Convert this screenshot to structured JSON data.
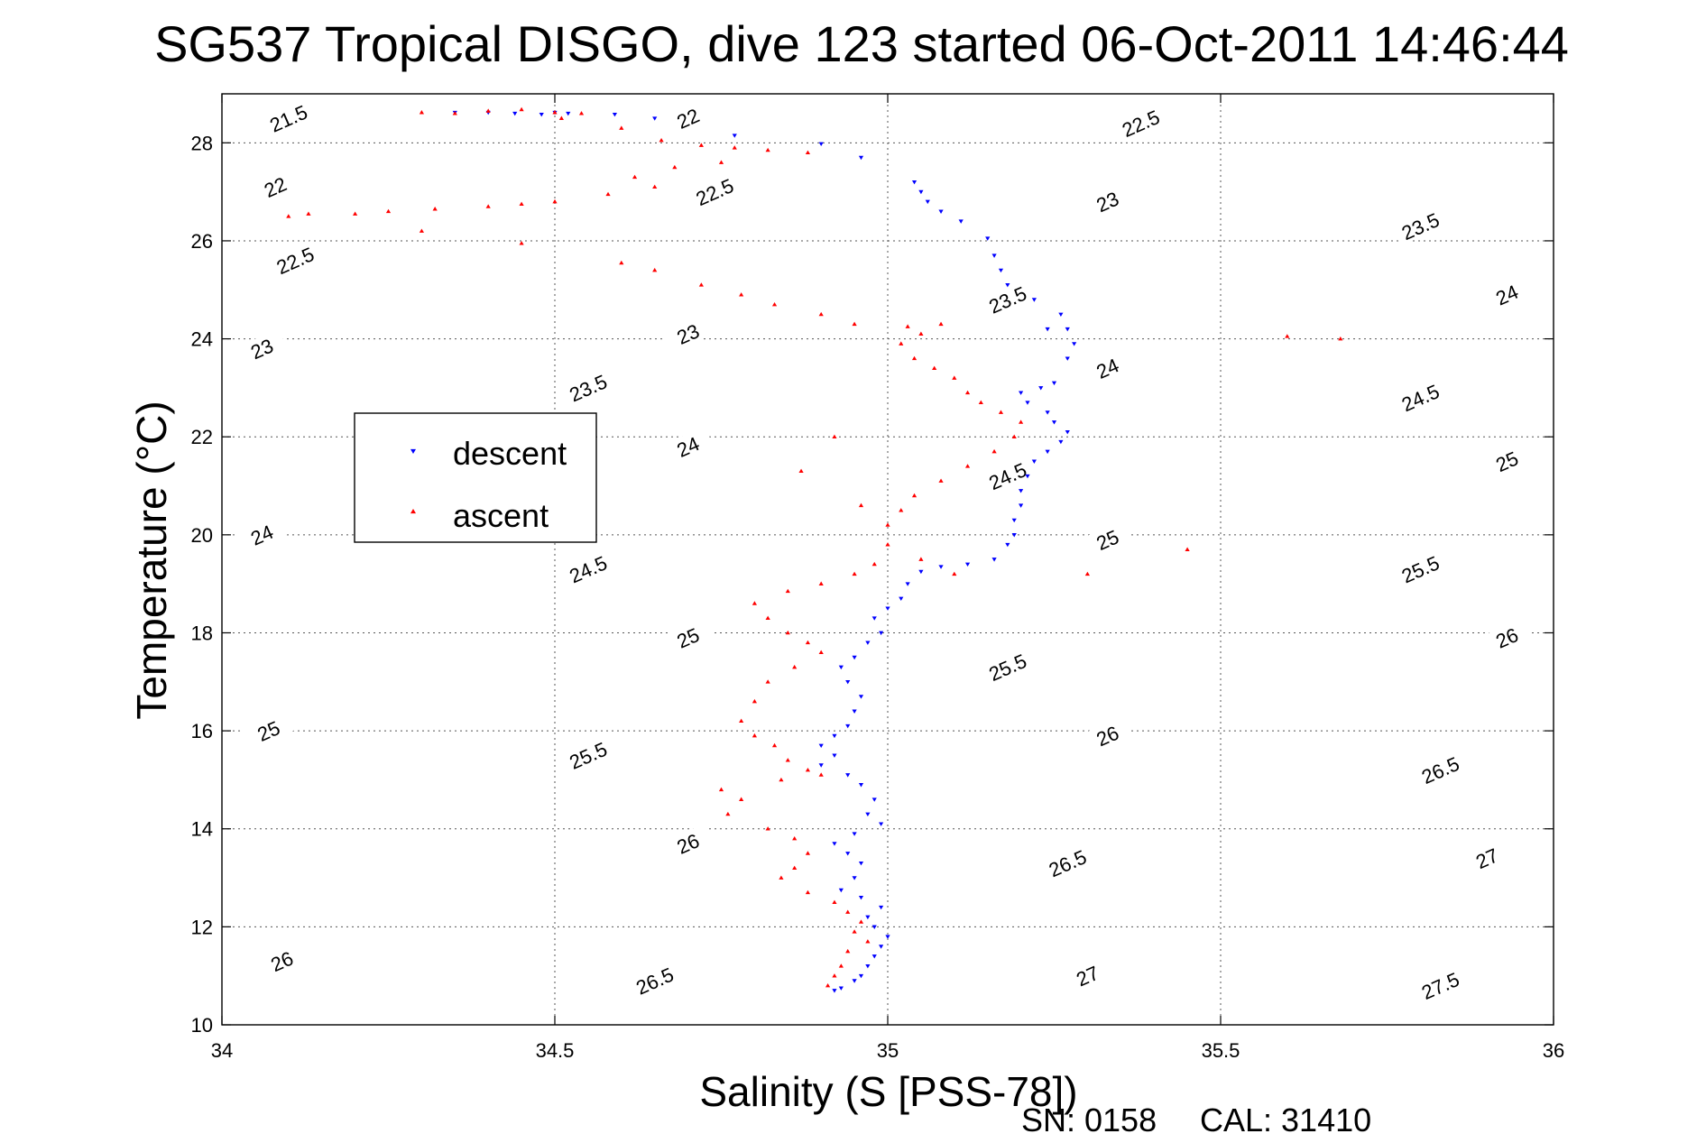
{
  "chart_data": {
    "type": "scatter",
    "title": "SG537 Tropical DISGO, dive 123 started 06-Oct-2011 14:46:44",
    "xlabel": "Salinity (S [PSS-78])",
    "ylabel": "Temperature (°C)",
    "xlim": [
      34,
      36
    ],
    "ylim": [
      10,
      29
    ],
    "xticks": [
      34,
      34.5,
      35,
      35.5,
      36
    ],
    "xtick_labels": [
      "34",
      "34.5",
      "35",
      "35.5",
      "36"
    ],
    "yticks": [
      10,
      12,
      14,
      16,
      18,
      20,
      22,
      24,
      26,
      28
    ],
    "ytick_labels": [
      "10",
      "12",
      "14",
      "16",
      "18",
      "20",
      "22",
      "24",
      "26",
      "28"
    ],
    "grid": true,
    "legend": {
      "placement": "left-middle",
      "entries": [
        {
          "label": "descent",
          "color": "#0000ff",
          "marker": "triangle-down"
        },
        {
          "label": "ascent",
          "color": "#ff0000",
          "marker": "triangle-up"
        }
      ]
    },
    "contours": {
      "levels": [
        21.5,
        22,
        22.5,
        23,
        23.5,
        24,
        24.5,
        25,
        25.5,
        26,
        26.5,
        27,
        27.5
      ],
      "labels": [
        {
          "text": "21.5",
          "s": 34.1,
          "t": 28.5
        },
        {
          "text": "22",
          "s": 34.08,
          "t": 27.1
        },
        {
          "text": "22.5",
          "s": 34.11,
          "t": 25.6
        },
        {
          "text": "23",
          "s": 34.06,
          "t": 23.8
        },
        {
          "text": "24",
          "s": 34.06,
          "t": 20.0
        },
        {
          "text": "25",
          "s": 34.07,
          "t": 16.0
        },
        {
          "text": "26",
          "s": 34.09,
          "t": 11.3
        },
        {
          "text": "22",
          "s": 34.7,
          "t": 28.5
        },
        {
          "text": "22.5",
          "s": 34.74,
          "t": 27.0
        },
        {
          "text": "23",
          "s": 34.7,
          "t": 24.1
        },
        {
          "text": "23.5",
          "s": 34.55,
          "t": 23.0
        },
        {
          "text": "24",
          "s": 34.7,
          "t": 21.8
        },
        {
          "text": "24.5",
          "s": 34.55,
          "t": 19.3
        },
        {
          "text": "25",
          "s": 34.7,
          "t": 17.9
        },
        {
          "text": "25.5",
          "s": 34.55,
          "t": 15.5
        },
        {
          "text": "26",
          "s": 34.7,
          "t": 13.7
        },
        {
          "text": "26.5",
          "s": 34.65,
          "t": 10.9
        },
        {
          "text": "22.5",
          "s": 35.38,
          "t": 28.4
        },
        {
          "text": "23",
          "s": 35.33,
          "t": 26.8
        },
        {
          "text": "23.5",
          "s": 35.18,
          "t": 24.8
        },
        {
          "text": "24",
          "s": 35.33,
          "t": 23.4
        },
        {
          "text": "24.5",
          "s": 35.18,
          "t": 21.2
        },
        {
          "text": "25",
          "s": 35.33,
          "t": 19.9
        },
        {
          "text": "25.5",
          "s": 35.18,
          "t": 17.3
        },
        {
          "text": "26",
          "s": 35.33,
          "t": 15.9
        },
        {
          "text": "26.5",
          "s": 35.27,
          "t": 13.3
        },
        {
          "text": "27",
          "s": 35.3,
          "t": 11.0
        },
        {
          "text": "23.5",
          "s": 35.8,
          "t": 26.3
        },
        {
          "text": "24",
          "s": 35.93,
          "t": 24.9
        },
        {
          "text": "24.5",
          "s": 35.8,
          "t": 22.8
        },
        {
          "text": "25",
          "s": 35.93,
          "t": 21.5
        },
        {
          "text": "25.5",
          "s": 35.8,
          "t": 19.3
        },
        {
          "text": "26",
          "s": 35.93,
          "t": 17.9
        },
        {
          "text": "26.5",
          "s": 35.83,
          "t": 15.2
        },
        {
          "text": "27",
          "s": 35.9,
          "t": 13.4
        },
        {
          "text": "27.5",
          "s": 35.83,
          "t": 10.8
        }
      ]
    },
    "series": [
      {
        "name": "descent",
        "color": "#0000ff",
        "points": [
          [
            34.35,
            28.62
          ],
          [
            34.4,
            28.62
          ],
          [
            34.44,
            28.6
          ],
          [
            34.48,
            28.58
          ],
          [
            34.5,
            28.62
          ],
          [
            34.52,
            28.6
          ],
          [
            34.59,
            28.58
          ],
          [
            34.65,
            28.5
          ],
          [
            34.77,
            28.15
          ],
          [
            34.9,
            27.98
          ],
          [
            34.96,
            27.7
          ],
          [
            35.04,
            27.2
          ],
          [
            35.05,
            27.0
          ],
          [
            35.06,
            26.8
          ],
          [
            35.08,
            26.6
          ],
          [
            35.11,
            26.4
          ],
          [
            35.15,
            26.05
          ],
          [
            35.16,
            25.7
          ],
          [
            35.17,
            25.4
          ],
          [
            35.18,
            25.1
          ],
          [
            35.22,
            24.8
          ],
          [
            35.26,
            24.5
          ],
          [
            35.27,
            24.2
          ],
          [
            35.24,
            24.2
          ],
          [
            35.28,
            23.9
          ],
          [
            35.27,
            23.6
          ],
          [
            35.25,
            23.1
          ],
          [
            35.23,
            23.0
          ],
          [
            35.2,
            22.9
          ],
          [
            35.21,
            22.7
          ],
          [
            35.24,
            22.5
          ],
          [
            35.25,
            22.3
          ],
          [
            35.27,
            22.1
          ],
          [
            35.26,
            21.9
          ],
          [
            35.24,
            21.7
          ],
          [
            35.22,
            21.5
          ],
          [
            35.21,
            21.2
          ],
          [
            35.2,
            20.9
          ],
          [
            35.2,
            20.6
          ],
          [
            35.19,
            20.3
          ],
          [
            35.19,
            20.0
          ],
          [
            35.18,
            19.8
          ],
          [
            35.16,
            19.5
          ],
          [
            35.12,
            19.4
          ],
          [
            35.08,
            19.35
          ],
          [
            35.05,
            19.25
          ],
          [
            35.03,
            19.0
          ],
          [
            35.02,
            18.7
          ],
          [
            35.0,
            18.5
          ],
          [
            34.98,
            18.3
          ],
          [
            34.99,
            18.0
          ],
          [
            34.97,
            17.8
          ],
          [
            34.95,
            17.5
          ],
          [
            34.93,
            17.3
          ],
          [
            34.94,
            17.0
          ],
          [
            34.96,
            16.7
          ],
          [
            34.95,
            16.4
          ],
          [
            34.94,
            16.1
          ],
          [
            34.92,
            15.9
          ],
          [
            34.9,
            15.7
          ],
          [
            34.92,
            15.5
          ],
          [
            34.9,
            15.3
          ],
          [
            34.94,
            15.1
          ],
          [
            34.96,
            14.9
          ],
          [
            34.98,
            14.6
          ],
          [
            34.97,
            14.3
          ],
          [
            34.99,
            14.1
          ],
          [
            34.95,
            13.9
          ],
          [
            34.92,
            13.7
          ],
          [
            34.94,
            13.5
          ],
          [
            34.96,
            13.3
          ],
          [
            34.95,
            13.0
          ],
          [
            34.93,
            12.75
          ],
          [
            34.96,
            12.6
          ],
          [
            34.99,
            12.4
          ],
          [
            34.97,
            12.2
          ],
          [
            34.98,
            12.0
          ],
          [
            35.0,
            11.8
          ],
          [
            34.99,
            11.6
          ],
          [
            34.98,
            11.4
          ],
          [
            34.97,
            11.2
          ],
          [
            34.96,
            11.0
          ],
          [
            34.95,
            10.9
          ],
          [
            34.93,
            10.75
          ],
          [
            34.92,
            10.7
          ]
        ]
      },
      {
        "name": "ascent",
        "color": "#ff0000",
        "points": [
          [
            34.3,
            28.62
          ],
          [
            34.35,
            28.6
          ],
          [
            34.4,
            28.65
          ],
          [
            34.45,
            28.68
          ],
          [
            34.5,
            28.62
          ],
          [
            34.54,
            28.6
          ],
          [
            34.51,
            28.5
          ],
          [
            34.6,
            28.3
          ],
          [
            34.66,
            28.05
          ],
          [
            34.72,
            27.95
          ],
          [
            34.77,
            27.9
          ],
          [
            34.82,
            27.85
          ],
          [
            34.88,
            27.8
          ],
          [
            34.75,
            27.6
          ],
          [
            34.68,
            27.5
          ],
          [
            34.62,
            27.3
          ],
          [
            34.65,
            27.1
          ],
          [
            34.58,
            26.95
          ],
          [
            34.5,
            26.8
          ],
          [
            34.45,
            26.75
          ],
          [
            34.4,
            26.7
          ],
          [
            34.32,
            26.65
          ],
          [
            34.25,
            26.6
          ],
          [
            34.2,
            26.55
          ],
          [
            34.13,
            26.55
          ],
          [
            34.1,
            26.5
          ],
          [
            34.3,
            26.2
          ],
          [
            34.45,
            25.95
          ],
          [
            34.6,
            25.55
          ],
          [
            34.65,
            25.4
          ],
          [
            34.72,
            25.1
          ],
          [
            34.78,
            24.9
          ],
          [
            34.83,
            24.7
          ],
          [
            34.9,
            24.5
          ],
          [
            34.95,
            24.3
          ],
          [
            35.03,
            24.25
          ],
          [
            35.08,
            24.3
          ],
          [
            35.05,
            24.1
          ],
          [
            35.02,
            23.9
          ],
          [
            35.04,
            23.6
          ],
          [
            35.07,
            23.4
          ],
          [
            35.1,
            23.2
          ],
          [
            35.12,
            22.9
          ],
          [
            35.14,
            22.7
          ],
          [
            35.17,
            22.5
          ],
          [
            35.2,
            22.3
          ],
          [
            35.19,
            22.0
          ],
          [
            35.16,
            21.7
          ],
          [
            35.12,
            21.4
          ],
          [
            35.08,
            21.1
          ],
          [
            35.04,
            20.8
          ],
          [
            35.02,
            20.5
          ],
          [
            35.0,
            20.2
          ],
          [
            35.0,
            19.8
          ],
          [
            34.98,
            19.4
          ],
          [
            34.95,
            19.2
          ],
          [
            34.9,
            19.0
          ],
          [
            34.85,
            18.85
          ],
          [
            34.8,
            18.6
          ],
          [
            34.82,
            18.3
          ],
          [
            34.85,
            18.0
          ],
          [
            34.88,
            17.8
          ],
          [
            34.9,
            17.6
          ],
          [
            34.86,
            17.3
          ],
          [
            34.82,
            17.0
          ],
          [
            34.8,
            16.6
          ],
          [
            34.78,
            16.2
          ],
          [
            34.8,
            15.9
          ],
          [
            34.83,
            15.7
          ],
          [
            34.85,
            15.4
          ],
          [
            34.88,
            15.2
          ],
          [
            34.9,
            15.1
          ],
          [
            34.84,
            15.0
          ],
          [
            34.78,
            14.6
          ],
          [
            34.76,
            14.3
          ],
          [
            34.82,
            14.0
          ],
          [
            34.86,
            13.8
          ],
          [
            34.88,
            13.5
          ],
          [
            34.86,
            13.2
          ],
          [
            34.84,
            13.0
          ],
          [
            34.88,
            12.7
          ],
          [
            34.92,
            12.5
          ],
          [
            34.94,
            12.3
          ],
          [
            34.96,
            12.1
          ],
          [
            34.95,
            11.9
          ],
          [
            34.97,
            11.7
          ],
          [
            34.94,
            11.5
          ],
          [
            34.93,
            11.2
          ],
          [
            34.92,
            11.0
          ],
          [
            34.91,
            10.8
          ],
          [
            35.05,
            19.5
          ],
          [
            35.1,
            19.2
          ],
          [
            35.45,
            19.7
          ],
          [
            35.6,
            24.05
          ],
          [
            35.68,
            24.0
          ],
          [
            35.3,
            19.2
          ],
          [
            34.92,
            22.0
          ],
          [
            34.87,
            21.3
          ],
          [
            34.96,
            20.6
          ],
          [
            34.75,
            14.8
          ]
        ]
      }
    ]
  },
  "footer": {
    "serial": "SN: 0158",
    "calibration": "CAL: 31410"
  }
}
